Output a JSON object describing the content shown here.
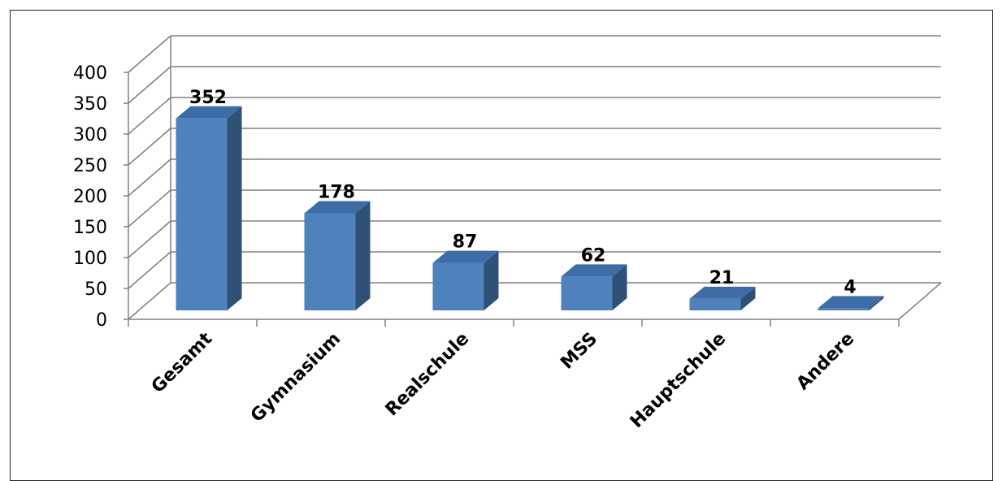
{
  "chart_data": {
    "type": "bar",
    "style": "3d-column",
    "categories": [
      "Gesamt",
      "Gymnasium",
      "Realschule",
      "MSS",
      "Hauptschule",
      "Andere"
    ],
    "values": [
      352,
      178,
      87,
      62,
      21,
      4
    ],
    "data_labels": [
      "352",
      "178",
      "87",
      "62",
      "21",
      "4"
    ],
    "y_ticks": [
      "0",
      "50",
      "100",
      "150",
      "200",
      "250",
      "300",
      "350",
      "400"
    ],
    "ylim": [
      0,
      400
    ],
    "grid": true,
    "legend": "none",
    "colors": {
      "front": "#4f81bd",
      "top": "#3e6ca6",
      "side": "#2f5077",
      "grid": "#808080"
    }
  }
}
